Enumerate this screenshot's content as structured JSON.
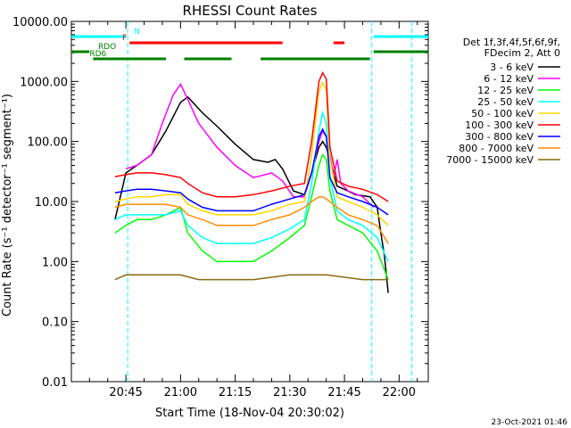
{
  "chart_data": {
    "type": "line",
    "title": "RHESSI Count Rates",
    "xlabel": "Start Time (18-Nov-04 20:30:02)",
    "ylabel": "Count Rate (s⁻¹ detector⁻¹ segment⁻¹)",
    "yscale": "log",
    "ylim": [
      0.01,
      10000
    ],
    "xlim": [
      "20:30:02",
      "22:08"
    ],
    "y_ticks": [
      "0.01",
      "0.10",
      "1.00",
      "10.00",
      "100.00",
      "1000.00",
      "10000.00"
    ],
    "x_ticks": [
      "20:45",
      "21:00",
      "21:15",
      "21:30",
      "21:45",
      "22:00"
    ],
    "legend_header": [
      "Det 1f,3f,4f,5f,6f,9f,",
      "FDecim 2, Att 0"
    ],
    "legend_position": "right",
    "flags": [
      {
        "label": "N",
        "color": "#00ffff",
        "segments": [
          [
            "20:30",
            "20:45"
          ],
          [
            "21:53",
            "22:08"
          ]
        ]
      },
      {
        "label": "F",
        "color": "#ff0000",
        "segments": [
          [
            "20:46",
            "21:28"
          ],
          [
            "21:42",
            "21:45"
          ]
        ]
      },
      {
        "label": "RDO",
        "color": "#008000",
        "segments": [
          [
            "20:30",
            "20:35"
          ],
          [
            "21:53",
            "22:08"
          ]
        ]
      },
      {
        "label": "RD6",
        "color": "#008000",
        "segments": [
          [
            "20:36",
            "20:56"
          ],
          [
            "21:01",
            "21:14"
          ],
          [
            "21:22",
            "21:52"
          ]
        ]
      }
    ],
    "vlines_cyan": [
      "20:45:30",
      "21:52:30",
      "22:03:30"
    ],
    "series": [
      {
        "name": "3 - 6 keV",
        "color": "#000000",
        "x": [
          "20:42",
          "20:45",
          "20:48",
          "20:52",
          "20:56",
          "21:00",
          "21:02",
          "21:06",
          "21:10",
          "21:15",
          "21:20",
          "21:24",
          "21:26",
          "21:28",
          "21:31",
          "21:34",
          "21:36",
          "21:38",
          "21:39",
          "21:40",
          "21:41",
          "21:43",
          "21:45",
          "21:48",
          "21:52",
          "21:54",
          "21:55",
          "21:56",
          "21:57"
        ],
        "y": [
          5,
          30,
          40,
          60,
          150,
          450,
          550,
          300,
          180,
          90,
          50,
          45,
          50,
          35,
          15,
          13,
          30,
          80,
          100,
          80,
          50,
          18,
          16,
          13,
          12,
          8,
          3,
          1.2,
          0.3
        ]
      },
      {
        "name": "6 - 12 keV",
        "color": "#ff00ff",
        "x": [
          "20:45",
          "20:48",
          "20:52",
          "20:55",
          "20:58",
          "21:00",
          "21:02",
          "21:05",
          "21:10",
          "21:15",
          "21:20",
          "21:25",
          "21:28",
          "21:31",
          "21:34",
          "21:36",
          "21:38",
          "21:39",
          "21:40",
          "21:41",
          "21:42",
          "21:43",
          "21:44",
          "21:46",
          "21:50",
          "21:53"
        ],
        "y": [
          35,
          40,
          60,
          200,
          600,
          900,
          500,
          200,
          80,
          40,
          25,
          30,
          22,
          12,
          12,
          30,
          100,
          150,
          120,
          60,
          25,
          50,
          20,
          15,
          12,
          8
        ]
      },
      {
        "name": "12 - 25 keV",
        "color": "#00ff00",
        "x": [
          "20:42",
          "20:45",
          "20:48",
          "20:52",
          "20:56",
          "21:00",
          "21:02",
          "21:06",
          "21:10",
          "21:15",
          "21:20",
          "21:25",
          "21:30",
          "21:34",
          "21:36",
          "21:38",
          "21:39",
          "21:40",
          "21:41",
          "21:43",
          "21:46",
          "21:50",
          "21:54",
          "21:57"
        ],
        "y": [
          3,
          4,
          5,
          5,
          6,
          8,
          3,
          1.5,
          1,
          1,
          1,
          1.5,
          2.5,
          4,
          12,
          40,
          60,
          50,
          15,
          5,
          4,
          3,
          1.5,
          0.5
        ]
      },
      {
        "name": "25 - 50 keV",
        "color": "#00ffff",
        "x": [
          "20:42",
          "20:45",
          "20:48",
          "20:52",
          "20:56",
          "21:00",
          "21:02",
          "21:06",
          "21:10",
          "21:15",
          "21:20",
          "21:25",
          "21:30",
          "21:34",
          "21:36",
          "21:38",
          "21:39",
          "21:40",
          "21:41",
          "21:43",
          "21:46",
          "21:50",
          "21:54",
          "21:57"
        ],
        "y": [
          5,
          6,
          6,
          6,
          6,
          7,
          4,
          2.5,
          2,
          2,
          2,
          2.5,
          3.5,
          5,
          20,
          150,
          300,
          200,
          25,
          7,
          5,
          4,
          2.5,
          1
        ]
      },
      {
        "name": "50 - 100 keV",
        "color": "#ffd700",
        "x": [
          "20:42",
          "20:45",
          "20:48",
          "20:52",
          "20:56",
          "21:00",
          "21:02",
          "21:06",
          "21:10",
          "21:15",
          "21:20",
          "21:25",
          "21:30",
          "21:34",
          "21:36",
          "21:38",
          "21:39",
          "21:40",
          "21:41",
          "21:43",
          "21:46",
          "21:50",
          "21:54",
          "21:57"
        ],
        "y": [
          10,
          11,
          12,
          12,
          13,
          13,
          9,
          7,
          6,
          6,
          6,
          7,
          9,
          10,
          60,
          700,
          950,
          700,
          50,
          12,
          10,
          8,
          6,
          4
        ]
      },
      {
        "name": "100 - 300 keV",
        "color": "#ff0000",
        "x": [
          "20:42",
          "20:45",
          "20:48",
          "20:52",
          "20:56",
          "21:00",
          "21:02",
          "21:06",
          "21:10",
          "21:15",
          "21:20",
          "21:25",
          "21:30",
          "21:34",
          "21:36",
          "21:38",
          "21:39",
          "21:40",
          "21:41",
          "21:43",
          "21:46",
          "21:50",
          "21:54",
          "21:57"
        ],
        "y": [
          26,
          28,
          30,
          30,
          28,
          25,
          20,
          14,
          12,
          12,
          13,
          15,
          18,
          20,
          100,
          1000,
          1400,
          1100,
          80,
          22,
          18,
          16,
          13,
          10
        ]
      },
      {
        "name": "300 - 800 keV",
        "color": "#0000ff",
        "x": [
          "20:42",
          "20:45",
          "20:48",
          "20:52",
          "20:56",
          "21:00",
          "21:02",
          "21:06",
          "21:10",
          "21:15",
          "21:20",
          "21:25",
          "21:30",
          "21:34",
          "21:36",
          "21:38",
          "21:39",
          "21:40",
          "21:41",
          "21:43",
          "21:46",
          "21:50",
          "21:54",
          "21:57"
        ],
        "y": [
          14,
          15,
          16,
          16,
          15,
          14,
          11,
          8,
          7,
          7,
          7,
          9,
          11,
          13,
          30,
          120,
          160,
          120,
          25,
          14,
          12,
          10,
          8,
          6
        ]
      },
      {
        "name": "800 - 7000 keV",
        "color": "#ff8c00",
        "x": [
          "20:42",
          "20:45",
          "20:48",
          "20:52",
          "20:56",
          "21:00",
          "21:02",
          "21:06",
          "21:10",
          "21:15",
          "21:20",
          "21:25",
          "21:30",
          "21:34",
          "21:36",
          "21:38",
          "21:39",
          "21:40",
          "21:41",
          "21:43",
          "21:46",
          "21:50",
          "21:54",
          "21:57"
        ],
        "y": [
          8,
          9,
          9,
          9,
          9,
          8,
          6,
          5,
          4,
          4,
          4,
          5,
          6,
          8,
          10,
          12,
          12,
          11,
          10,
          8,
          6,
          5,
          4,
          2
        ]
      },
      {
        "name": "7000 - 15000 keV",
        "color": "#8b6914",
        "x": [
          "20:42",
          "20:45",
          "20:50",
          "20:55",
          "21:00",
          "21:05",
          "21:10",
          "21:20",
          "21:30",
          "21:40",
          "21:50",
          "21:57"
        ],
        "y": [
          0.5,
          0.6,
          0.6,
          0.6,
          0.6,
          0.5,
          0.5,
          0.5,
          0.6,
          0.6,
          0.5,
          0.5
        ]
      }
    ],
    "footer_timestamp": "23-Oct-2021 01:46"
  }
}
